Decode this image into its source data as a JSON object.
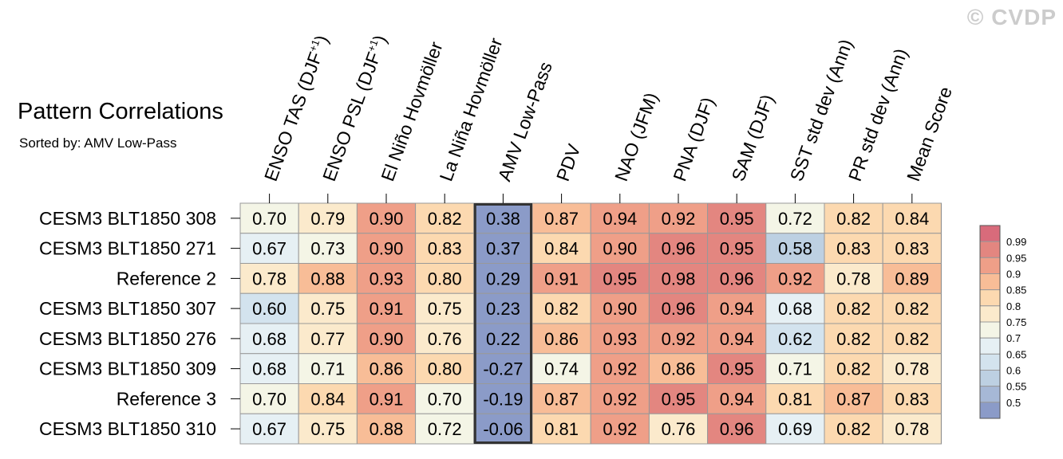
{
  "watermark": "© CVDP",
  "title": "Pattern Correlations",
  "subtitle": "Sorted by: AMV Low-Pass",
  "colors": {
    "scale": [
      "#8b9bc8",
      "#a6b8d6",
      "#bdd0e2",
      "#d3e3ee",
      "#e6f0f4",
      "#f4f5e6",
      "#fbeacc",
      "#fcd9b0",
      "#f8bd97",
      "#ef9f88",
      "#e38680",
      "#d86b7b"
    ],
    "highlight_border": "#333333",
    "grid": "#999999"
  },
  "chart_data": {
    "type": "heatmap",
    "title": "Pattern Correlations",
    "subtitle": "Sorted by: AMV Low-Pass",
    "columns": [
      "ENSO TAS (DJF+1)",
      "ENSO PSL (DJF+1)",
      "El Niño Hovmöller",
      "La Niña Hovmöller",
      "AMV Low-Pass",
      "PDV",
      "NAO (JFM)",
      "PNA (DJF)",
      "SAM (DJF)",
      "SST std dev (Ann)",
      "PR std dev (Ann)",
      "Mean Score"
    ],
    "column_labels": [
      {
        "main": "ENSO TAS (DJF",
        "sup": "+1",
        "tail": ")"
      },
      {
        "main": "ENSO PSL (DJF",
        "sup": "+1",
        "tail": ")"
      },
      {
        "main": "El Niño Hovmöller",
        "sup": "",
        "tail": ""
      },
      {
        "main": "La Niña Hovmöller",
        "sup": "",
        "tail": ""
      },
      {
        "main": "AMV Low-Pass",
        "sup": "",
        "tail": ""
      },
      {
        "main": "PDV",
        "sup": "",
        "tail": ""
      },
      {
        "main": "NAO (JFM)",
        "sup": "",
        "tail": ""
      },
      {
        "main": "PNA (DJF)",
        "sup": "",
        "tail": ""
      },
      {
        "main": "SAM (DJF)",
        "sup": "",
        "tail": ""
      },
      {
        "main": "SST std dev (Ann)",
        "sup": "",
        "tail": ""
      },
      {
        "main": "PR std dev (Ann)",
        "sup": "",
        "tail": ""
      },
      {
        "main": "Mean Score",
        "sup": "",
        "tail": ""
      }
    ],
    "rows": [
      "CESM3 BLT1850 308",
      "CESM3 BLT1850 271",
      "Reference 2",
      "CESM3 BLT1850 307",
      "CESM3 BLT1850 276",
      "CESM3 BLT1850 309",
      "Reference 3",
      "CESM3 BLT1850 310"
    ],
    "values": [
      [
        "0.70",
        "0.79",
        "0.90",
        "0.82",
        "0.38",
        "0.87",
        "0.94",
        "0.92",
        "0.95",
        "0.72",
        "0.82",
        "0.84"
      ],
      [
        "0.67",
        "0.73",
        "0.90",
        "0.83",
        "0.37",
        "0.84",
        "0.90",
        "0.96",
        "0.95",
        "0.58",
        "0.83",
        "0.83"
      ],
      [
        "0.78",
        "0.88",
        "0.93",
        "0.80",
        "0.29",
        "0.91",
        "0.95",
        "0.98",
        "0.96",
        "0.92",
        "0.78",
        "0.89"
      ],
      [
        "0.60",
        "0.75",
        "0.91",
        "0.75",
        "0.23",
        "0.82",
        "0.90",
        "0.96",
        "0.94",
        "0.68",
        "0.82",
        "0.82"
      ],
      [
        "0.68",
        "0.77",
        "0.90",
        "0.76",
        "0.22",
        "0.86",
        "0.93",
        "0.92",
        "0.94",
        "0.62",
        "0.82",
        "0.82"
      ],
      [
        "0.68",
        "0.71",
        "0.86",
        "0.80",
        "-0.27",
        "0.74",
        "0.92",
        "0.86",
        "0.95",
        "0.71",
        "0.82",
        "0.78"
      ],
      [
        "0.70",
        "0.84",
        "0.91",
        "0.70",
        "-0.19",
        "0.87",
        "0.92",
        "0.95",
        "0.94",
        "0.81",
        "0.87",
        "0.83"
      ],
      [
        "0.67",
        "0.75",
        "0.88",
        "0.72",
        "-0.06",
        "0.81",
        "0.92",
        "0.76",
        "0.96",
        "0.69",
        "0.82",
        "0.78"
      ]
    ],
    "highlighted_column": "AMV Low-Pass",
    "colorbar": {
      "levels": [
        0.5,
        0.55,
        0.6,
        0.65,
        0.7,
        0.75,
        0.8,
        0.85,
        0.9,
        0.95,
        0.99
      ],
      "labels": [
        "0.5",
        "0.55",
        "0.6",
        "0.65",
        "0.7",
        "0.75",
        "0.8",
        "0.85",
        "0.9",
        "0.95",
        "0.99"
      ]
    }
  }
}
